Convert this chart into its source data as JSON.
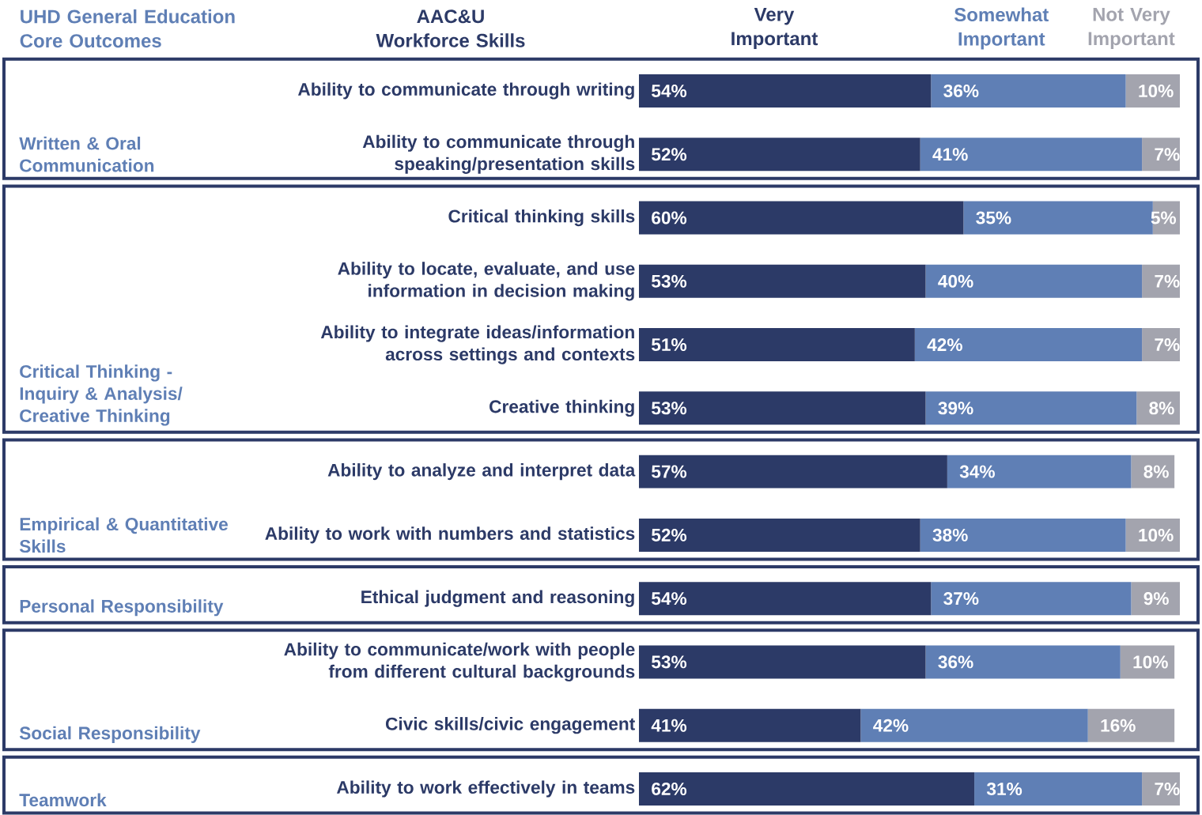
{
  "chart_data": {
    "type": "bar",
    "orientation": "horizontal",
    "stacked": true,
    "ylabel": "AAC&U Workforce Skills",
    "annotations": [
      "UHD General Education Core Outcomes",
      "Written & Oral Communication",
      "Critical Thinking - Inquiry & Analysis/ Creative Thinking",
      "Empirical & Quantitative Skills",
      "Personal Responsibility",
      "Social Responsibility",
      "Teamwork"
    ],
    "categories": [
      "Ability to communicate through writing",
      "Ability to communicate through speaking/presentation skills",
      "Critical thinking skills",
      "Ability to locate, evaluate, and use information in decision making",
      "Ability to integrate ideas/information across settings and contexts",
      "Creative thinking",
      "Ability to analyze and interpret data",
      "Ability to work with numbers and statistics",
      "Ethical judgment and reasoning",
      "Ability to communicate/work with people from different cultural backgrounds",
      "Civic skills/civic engagement",
      "Ability to work effectively in teams"
    ],
    "series": [
      {
        "name": "Very Important",
        "color": "#2c3a67",
        "values": [
          54,
          52,
          60,
          53,
          51,
          53,
          57,
          52,
          54,
          53,
          41,
          62
        ],
        "value_labels": [
          "54%",
          "52%",
          "60%",
          "53%",
          "51%",
          "53%",
          "57%",
          "52%",
          "54%",
          "53%",
          "41%",
          "62%"
        ]
      },
      {
        "name": "Somewhat Important",
        "color": "#5f7fb5",
        "values": [
          36,
          41,
          35,
          40,
          42,
          39,
          34,
          38,
          37,
          36,
          42,
          31
        ],
        "value_labels": [
          "36%",
          "41%",
          "35%",
          "40%",
          "42%",
          "39%",
          "34%",
          "38%",
          "37%",
          "36%",
          "42%",
          "31%"
        ]
      },
      {
        "name": "Not Very Important",
        "color": "#a3a4ae",
        "values": [
          10,
          7,
          5,
          7,
          7,
          8,
          8,
          10,
          9,
          10,
          16,
          7
        ],
        "value_labels": [
          "10%",
          "7%",
          "5%",
          "7%",
          "7%",
          "8%",
          "8%",
          "10%",
          "9%",
          "10%",
          "16%",
          "7%"
        ]
      }
    ],
    "tick_labels": "y"
  }
}
